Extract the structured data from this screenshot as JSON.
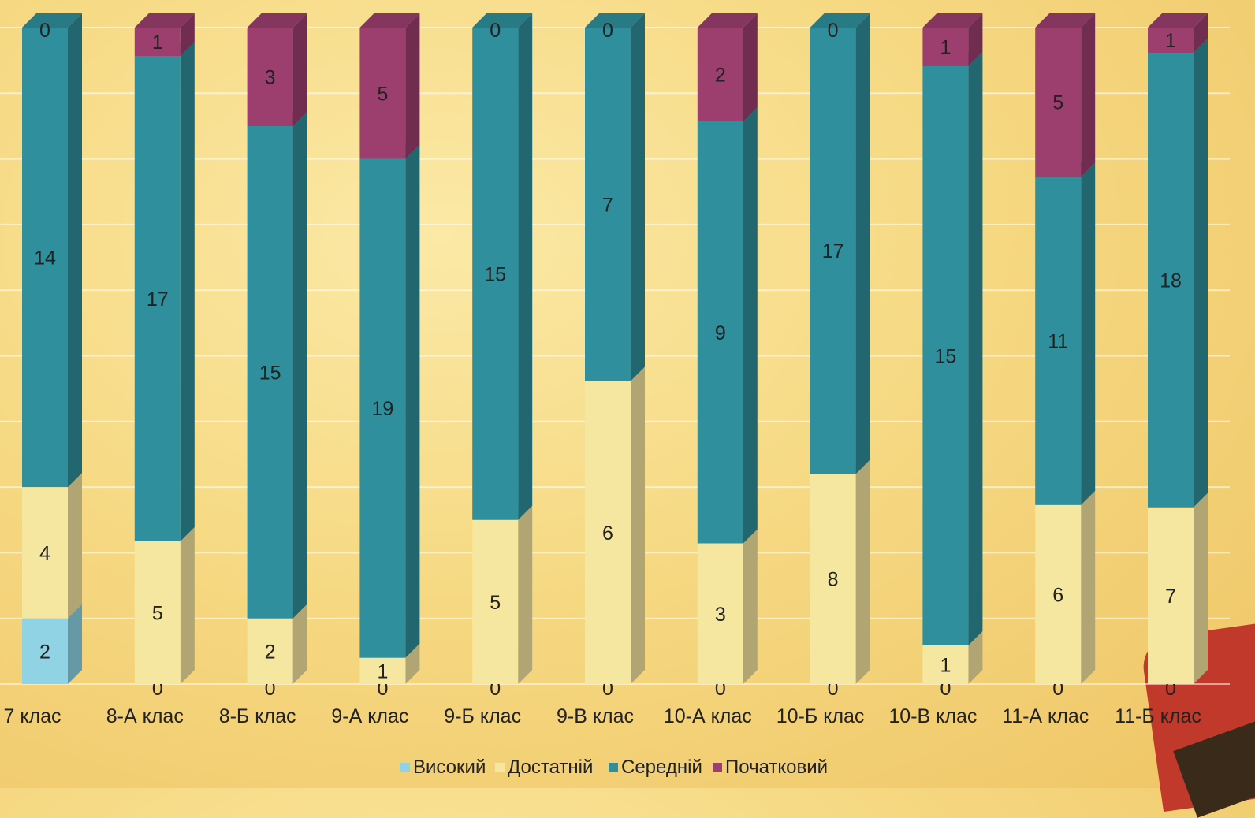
{
  "chart_data": {
    "type": "bar",
    "stacked": true,
    "categories": [
      "7 клас",
      "8-А клас",
      "8-Б клас",
      "9-А клас",
      "9-Б клас",
      "9-В клас",
      "10-А клас",
      "10-Б клас",
      "10-В клас",
      "11-А клас",
      "11-Б клас"
    ],
    "series": [
      {
        "name": "Високий",
        "color": "#8fd3e5",
        "values": [
          2,
          0,
          0,
          0,
          0,
          0,
          0,
          0,
          0,
          0,
          0
        ]
      },
      {
        "name": "Достатній",
        "color": "#f6e7a0",
        "values": [
          4,
          5,
          2,
          1,
          5,
          6,
          3,
          8,
          1,
          6,
          7
        ]
      },
      {
        "name": "Середній",
        "color": "#2f8f9c",
        "values": [
          14,
          17,
          15,
          19,
          15,
          7,
          9,
          17,
          15,
          11,
          18
        ]
      },
      {
        "name": "Початковий",
        "color": "#9c3f6f",
        "values": [
          0,
          1,
          3,
          5,
          0,
          0,
          2,
          0,
          1,
          5,
          1
        ]
      }
    ],
    "legend_position": "bottom",
    "grid": true,
    "normalized_to_100_percent": true
  }
}
